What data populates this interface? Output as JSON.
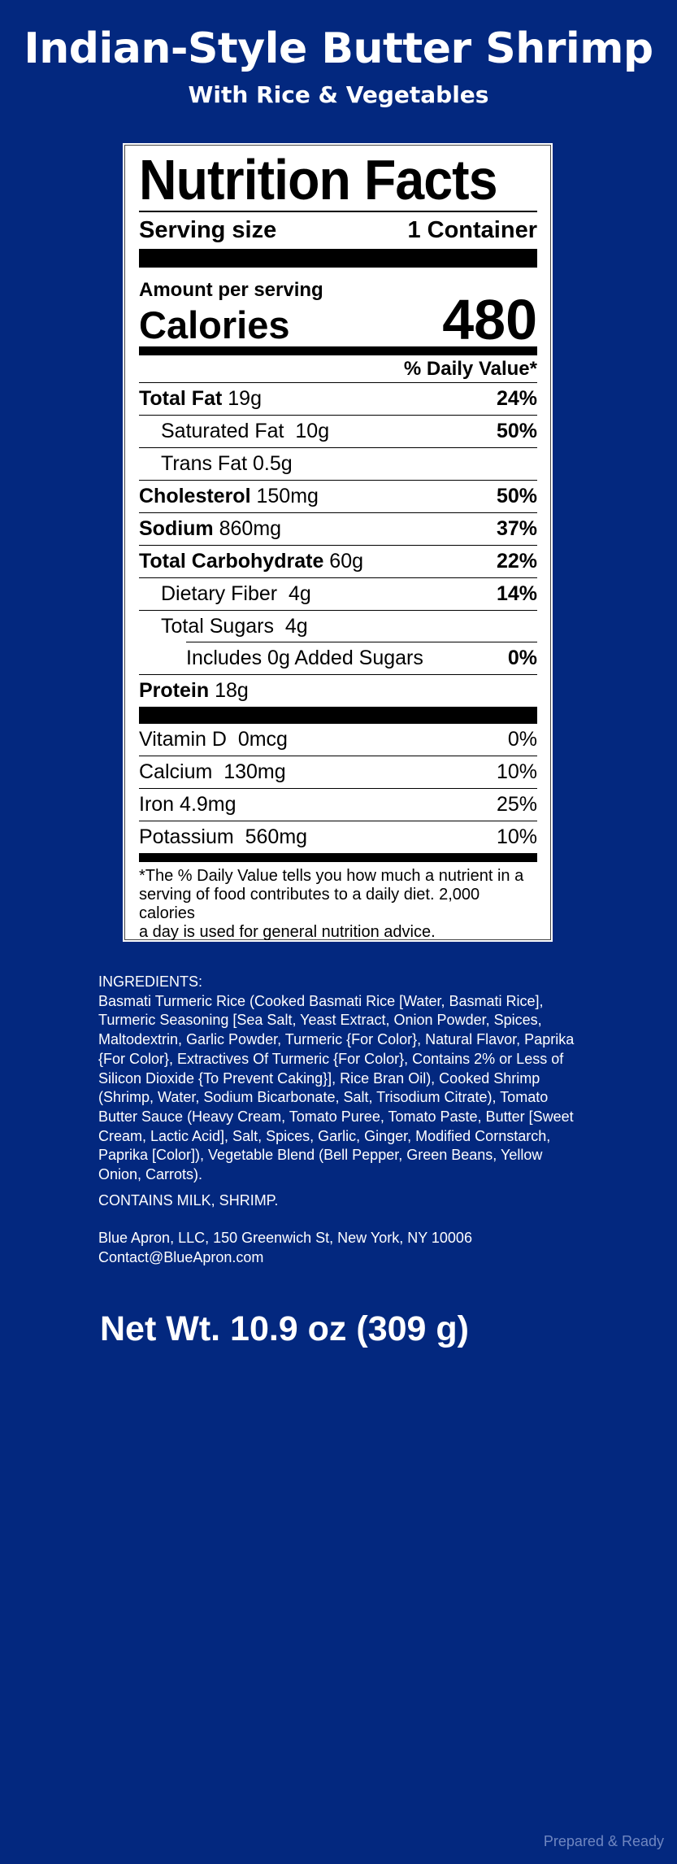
{
  "header": {
    "title": "Indian-Style Butter Shrimp",
    "subtitle": "With Rice & Vegetables"
  },
  "nutrition": {
    "title": "Nutrition Facts",
    "serving_size_label": "Serving size",
    "serving_size_value": "1 Container",
    "amount_per_serving": "Amount per serving",
    "calories_label": "Calories",
    "calories_value": "480",
    "dv_header": "% Daily Value*",
    "rows": [
      {
        "name": "Total Fat",
        "amount": "19g",
        "dv": "24%"
      },
      {
        "name": "Saturated Fat",
        "amount": "10g",
        "dv": "50%"
      },
      {
        "name": "Trans Fat",
        "amount": "0.5g",
        "dv": ""
      },
      {
        "name": "Cholesterol",
        "amount": "150mg",
        "dv": "50%"
      },
      {
        "name": "Sodium",
        "amount": "860mg",
        "dv": "37%"
      },
      {
        "name": "Total Carbohydrate",
        "amount": "60g",
        "dv": "22%"
      },
      {
        "name": "Dietary Fiber",
        "amount": "4g",
        "dv": "14%"
      },
      {
        "name": "Total Sugars",
        "amount": "4g",
        "dv": ""
      },
      {
        "name": "Includes 0g Added Sugars",
        "amount": "",
        "dv": "0%"
      },
      {
        "name": "Protein",
        "amount": "18g",
        "dv": ""
      }
    ],
    "micros": [
      {
        "name": "Vitamin D",
        "amount": "0mcg",
        "dv": "0%"
      },
      {
        "name": "Calcium",
        "amount": "130mg",
        "dv": "10%"
      },
      {
        "name": "Iron",
        "amount": "4.9mg",
        "dv": "25%"
      },
      {
        "name": "Potassium",
        "amount": "560mg",
        "dv": "10%"
      }
    ],
    "footnote_lines": [
      "*The % Daily Value tells you how much a nutrient in a",
      "serving of food contributes to a daily diet. 2,000 calories",
      "a day is used for general nutrition advice."
    ]
  },
  "ingredients": {
    "heading": "INGREDIENTS:",
    "lines": [
      "Basmati Turmeric Rice (Cooked Basmati Rice [Water, Basmati Rice],",
      "Turmeric Seasoning [Sea Salt, Yeast Extract, Onion Powder, Spices,",
      "Maltodextrin, Garlic Powder, Turmeric {For Color}, Natural Flavor, Paprika",
      "{For Color}, Extractives Of Turmeric {For Color}, Contains 2% or Less of",
      "Silicon Dioxide {To Prevent Caking}], Rice Bran Oil), Cooked Shrimp",
      "(Shrimp, Water, Sodium Bicarbonate, Salt, Trisodium Citrate), Tomato",
      "Butter Sauce (Heavy Cream, Tomato Puree, Tomato Paste, Butter [Sweet",
      "Cream, Lactic Acid], Salt, Spices, Garlic, Ginger, Modified Cornstarch,",
      "Paprika [Color]), Vegetable Blend (Bell Pepper, Green Beans, Yellow",
      "Onion, Carrots)."
    ],
    "contains": "CONTAINS MILK, SHRIMP."
  },
  "company": {
    "address": "Blue Apron, LLC, 150 Greenwich St, New York, NY 10006",
    "email": "Contact@BlueApron.com"
  },
  "net_weight": "Net Wt. 10.9 oz (309 g)",
  "footer": "Prepared & Ready",
  "colors": {
    "background": "#03287f",
    "label": "#ffffff",
    "footer_text": "#6f86c0"
  }
}
